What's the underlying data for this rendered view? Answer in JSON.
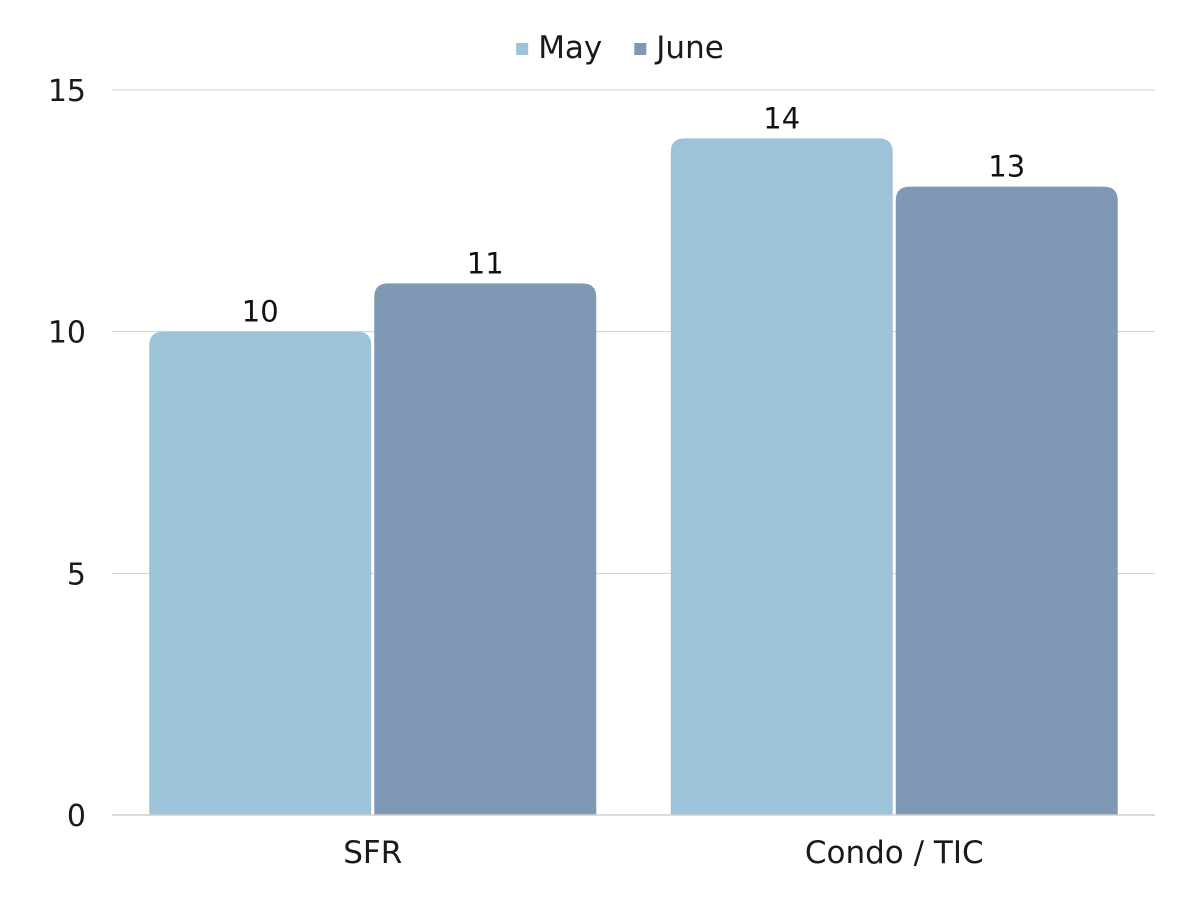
{
  "chart_data": {
    "type": "bar",
    "categories": [
      "SFR",
      "Condo / TIC"
    ],
    "series": [
      {
        "name": "May",
        "values": [
          10,
          14
        ],
        "color": "#9dc3d8"
      },
      {
        "name": "June",
        "values": [
          11,
          13
        ],
        "color": "#7f98b5"
      }
    ],
    "ylim": [
      0,
      15
    ],
    "yticks": [
      0,
      5,
      10,
      15
    ],
    "grid": true,
    "legend": "top-center",
    "data_labels": true
  }
}
